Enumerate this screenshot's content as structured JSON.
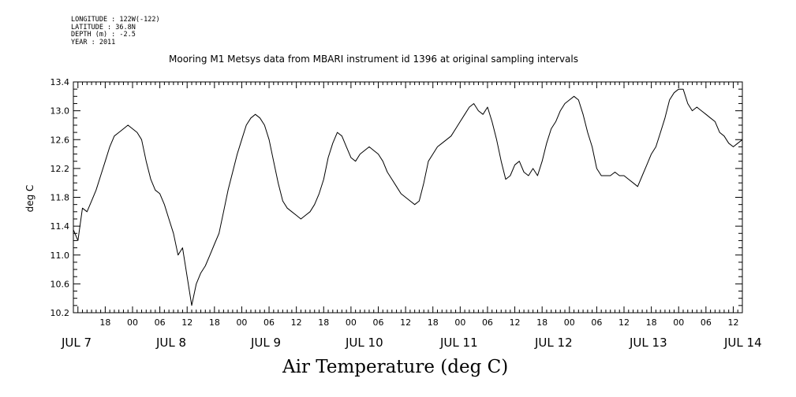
{
  "meta": {
    "longitude": "LONGITUDE : 122W(-122)",
    "latitude": "LATITUDE : 36.8N",
    "depth": "DEPTH (m) : -2.5",
    "year": "YEAR : 2011"
  },
  "chart_data": {
    "type": "line",
    "title": "Mooring M1 Metsys data from MBARI instrument id 1396 at original sampling intervals",
    "xlabel": "Air Temperature (deg C)",
    "ylabel": "deg C",
    "ylim": [
      10.2,
      13.4
    ],
    "y_ticks": [
      "10.2",
      "10.6",
      "11.0",
      "11.4",
      "11.8",
      "12.2",
      "12.6",
      "13.0",
      "13.4"
    ],
    "x_unit": "hours since JUL 7 00:00",
    "xlim": [
      -13,
      134
    ],
    "x_ticks": [
      {
        "x": -6,
        "label": "18"
      },
      {
        "x": 0,
        "label": "00"
      },
      {
        "x": 6,
        "label": "06"
      },
      {
        "x": 12,
        "label": "12"
      },
      {
        "x": 18,
        "label": "18"
      },
      {
        "x": 24,
        "label": "00"
      },
      {
        "x": 30,
        "label": "06"
      },
      {
        "x": 36,
        "label": "12"
      },
      {
        "x": 42,
        "label": "18"
      },
      {
        "x": 48,
        "label": "00"
      },
      {
        "x": 54,
        "label": "06"
      },
      {
        "x": 60,
        "label": "12"
      },
      {
        "x": 66,
        "label": "18"
      },
      {
        "x": 72,
        "label": "00"
      },
      {
        "x": 78,
        "label": "06"
      },
      {
        "x": 84,
        "label": "12"
      },
      {
        "x": 90,
        "label": "18"
      },
      {
        "x": 96,
        "label": "00"
      },
      {
        "x": 102,
        "label": "06"
      },
      {
        "x": 108,
        "label": "12"
      },
      {
        "x": 114,
        "label": "18"
      },
      {
        "x": 120,
        "label": "00"
      },
      {
        "x": 126,
        "label": "06"
      },
      {
        "x": 132,
        "label": "12"
      }
    ],
    "day_labels": [
      {
        "x": -7,
        "label": "JUL  7"
      },
      {
        "x": 17,
        "label": "JUL  8"
      },
      {
        "x": 41,
        "label": "JUL  9"
      },
      {
        "x": 65,
        "label": "JUL 10"
      },
      {
        "x": 89,
        "label": "JUL 11"
      },
      {
        "x": 113,
        "label": "JUL 12"
      },
      {
        "x": 137,
        "label": "JUL 13"
      },
      {
        "x": 161,
        "label": "JUL 14"
      }
    ],
    "series": [
      {
        "points": [
          [
            -13,
            11.35
          ],
          [
            -12,
            11.2
          ],
          [
            -11,
            11.65
          ],
          [
            -10,
            11.6
          ],
          [
            -9,
            11.75
          ],
          [
            -8,
            11.9
          ],
          [
            -7,
            12.1
          ],
          [
            -6,
            12.3
          ],
          [
            -5,
            12.5
          ],
          [
            -4,
            12.65
          ],
          [
            -3,
            12.7
          ],
          [
            -2,
            12.75
          ],
          [
            -1,
            12.8
          ],
          [
            0,
            12.75
          ],
          [
            1,
            12.7
          ],
          [
            2,
            12.6
          ],
          [
            3,
            12.3
          ],
          [
            4,
            12.05
          ],
          [
            5,
            11.9
          ],
          [
            6,
            11.85
          ],
          [
            7,
            11.7
          ],
          [
            8,
            11.5
          ],
          [
            9,
            11.3
          ],
          [
            10,
            11.0
          ],
          [
            11,
            11.1
          ],
          [
            12,
            10.7
          ],
          [
            13,
            10.3
          ],
          [
            14,
            10.6
          ],
          [
            15,
            10.75
          ],
          [
            16,
            10.85
          ],
          [
            17,
            11.0
          ],
          [
            18,
            11.15
          ],
          [
            19,
            11.3
          ],
          [
            20,
            11.6
          ],
          [
            21,
            11.9
          ],
          [
            22,
            12.15
          ],
          [
            23,
            12.4
          ],
          [
            24,
            12.6
          ],
          [
            25,
            12.8
          ],
          [
            26,
            12.9
          ],
          [
            27,
            12.95
          ],
          [
            28,
            12.9
          ],
          [
            29,
            12.8
          ],
          [
            30,
            12.6
          ],
          [
            31,
            12.3
          ],
          [
            32,
            12.0
          ],
          [
            33,
            11.75
          ],
          [
            34,
            11.65
          ],
          [
            35,
            11.6
          ],
          [
            36,
            11.55
          ],
          [
            37,
            11.5
          ],
          [
            38,
            11.55
          ],
          [
            39,
            11.6
          ],
          [
            40,
            11.7
          ],
          [
            41,
            11.85
          ],
          [
            42,
            12.05
          ],
          [
            43,
            12.35
          ],
          [
            44,
            12.55
          ],
          [
            45,
            12.7
          ],
          [
            46,
            12.65
          ],
          [
            47,
            12.5
          ],
          [
            48,
            12.35
          ],
          [
            49,
            12.3
          ],
          [
            50,
            12.4
          ],
          [
            51,
            12.45
          ],
          [
            52,
            12.5
          ],
          [
            53,
            12.45
          ],
          [
            54,
            12.4
          ],
          [
            55,
            12.3
          ],
          [
            56,
            12.15
          ],
          [
            57,
            12.05
          ],
          [
            58,
            11.95
          ],
          [
            59,
            11.85
          ],
          [
            60,
            11.8
          ],
          [
            61,
            11.75
          ],
          [
            62,
            11.7
          ],
          [
            63,
            11.75
          ],
          [
            64,
            12.0
          ],
          [
            65,
            12.3
          ],
          [
            66,
            12.4
          ],
          [
            67,
            12.5
          ],
          [
            68,
            12.55
          ],
          [
            69,
            12.6
          ],
          [
            70,
            12.65
          ],
          [
            71,
            12.75
          ],
          [
            72,
            12.85
          ],
          [
            73,
            12.95
          ],
          [
            74,
            13.05
          ],
          [
            75,
            13.1
          ],
          [
            76,
            13.0
          ],
          [
            77,
            12.95
          ],
          [
            78,
            13.05
          ],
          [
            79,
            12.85
          ],
          [
            80,
            12.6
          ],
          [
            81,
            12.3
          ],
          [
            82,
            12.05
          ],
          [
            83,
            12.1
          ],
          [
            84,
            12.25
          ],
          [
            85,
            12.3
          ],
          [
            86,
            12.15
          ],
          [
            87,
            12.1
          ],
          [
            88,
            12.2
          ],
          [
            89,
            12.1
          ],
          [
            90,
            12.3
          ],
          [
            91,
            12.55
          ],
          [
            92,
            12.75
          ],
          [
            93,
            12.85
          ],
          [
            94,
            13.0
          ],
          [
            95,
            13.1
          ],
          [
            96,
            13.15
          ],
          [
            97,
            13.2
          ],
          [
            98,
            13.15
          ],
          [
            99,
            12.95
          ],
          [
            100,
            12.7
          ],
          [
            101,
            12.5
          ],
          [
            102,
            12.2
          ],
          [
            103,
            12.1
          ],
          [
            104,
            12.1
          ],
          [
            105,
            12.1
          ],
          [
            106,
            12.15
          ],
          [
            107,
            12.1
          ],
          [
            108,
            12.1
          ],
          [
            109,
            12.05
          ],
          [
            110,
            12.0
          ],
          [
            111,
            11.95
          ],
          [
            112,
            12.1
          ],
          [
            113,
            12.25
          ],
          [
            114,
            12.4
          ],
          [
            115,
            12.5
          ],
          [
            116,
            12.7
          ],
          [
            117,
            12.9
          ],
          [
            118,
            13.15
          ],
          [
            119,
            13.25
          ],
          [
            120,
            13.3
          ],
          [
            121,
            13.3
          ],
          [
            122,
            13.1
          ],
          [
            123,
            13.0
          ],
          [
            124,
            13.05
          ],
          [
            125,
            13.0
          ],
          [
            126,
            12.95
          ],
          [
            127,
            12.9
          ],
          [
            128,
            12.85
          ],
          [
            129,
            12.7
          ],
          [
            130,
            12.65
          ],
          [
            131,
            12.55
          ],
          [
            132,
            12.5
          ],
          [
            133,
            12.55
          ],
          [
            134,
            12.6
          ]
        ]
      }
    ]
  }
}
